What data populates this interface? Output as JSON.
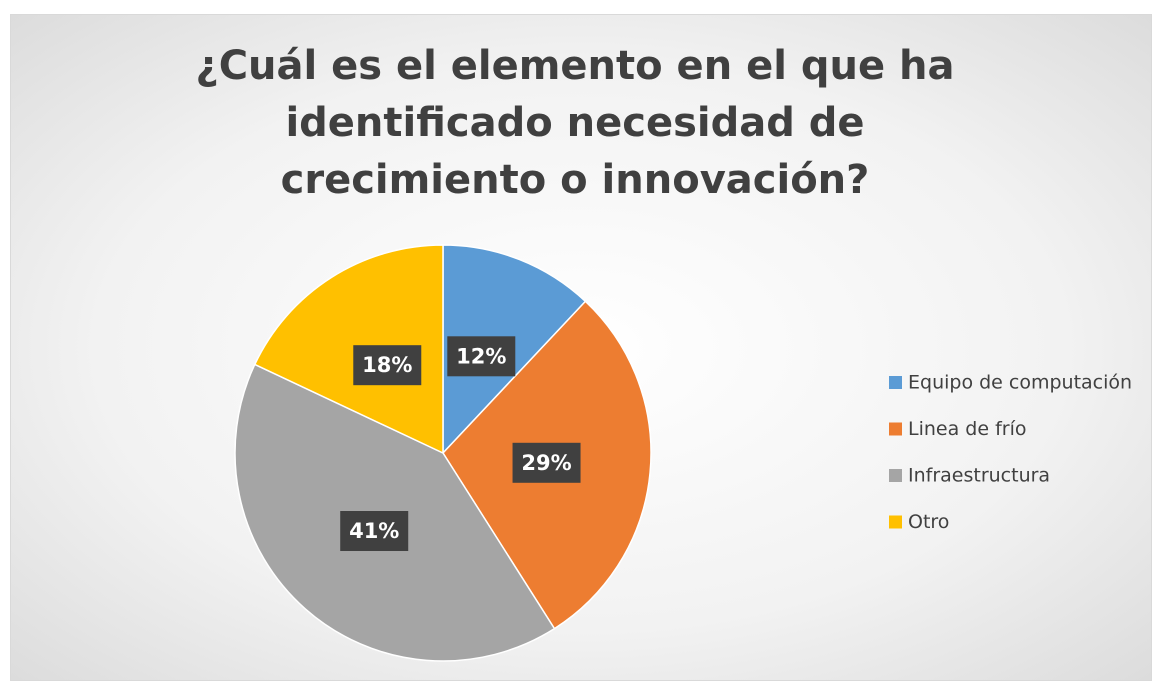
{
  "chart_data": {
    "type": "pie",
    "title": "¿Cuál es el elemento en el que ha identificado necesidad de crecimiento o innovación?",
    "categories": [
      "Equipo de computación",
      "Linea de frío",
      "Infraestructura",
      "Otro"
    ],
    "values": [
      12,
      29,
      41,
      18
    ],
    "value_labels": [
      "12%",
      "29%",
      "41%",
      "18%"
    ],
    "colors": [
      "#5b9bd5",
      "#ed7d31",
      "#a5a5a5",
      "#ffc000"
    ],
    "legend": "right"
  }
}
